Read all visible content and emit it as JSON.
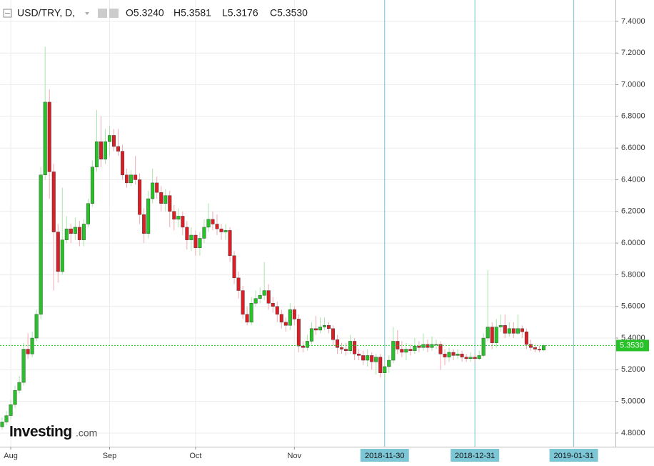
{
  "chart_data": {
    "type": "candlestick",
    "title": "USD/TRY, D,",
    "ohlc_labels": [
      "O5.3240",
      "H5.3581",
      "L5.3176",
      "C5.3530"
    ],
    "watermark": [
      "Investing",
      ".com"
    ],
    "up_color": "#27c227",
    "down_color": "#d81f26",
    "up_wick": "#a8e4a8",
    "down_wick": "#f2a8b0",
    "grid": true,
    "open": [
      4.84,
      4.87,
      4.91,
      4.98,
      5.07,
      5.12,
      5.33,
      5.3,
      5.4,
      5.55,
      6.43,
      6.89,
      6.45,
      6.07,
      5.82,
      6.02,
      6.09,
      6.06,
      6.1,
      6.02,
      6.12,
      6.25,
      6.48,
      6.64,
      6.53,
      6.64,
      6.68,
      6.61,
      6.58,
      6.43,
      6.38,
      6.43,
      6.4,
      6.18,
      6.06,
      6.28,
      6.38,
      6.32,
      6.25,
      6.3,
      6.2,
      6.15,
      6.17,
      6.1,
      6.02,
      6.05,
      5.97,
      6.03,
      6.1,
      6.15,
      6.12,
      6.09,
      6.07,
      6.08,
      5.92,
      5.78,
      5.7,
      5.55,
      5.5,
      5.62,
      5.65,
      5.67,
      5.7,
      5.62,
      5.6,
      5.55,
      5.5,
      5.48,
      5.58,
      5.52,
      5.35,
      5.34,
      5.38,
      5.46,
      5.45,
      5.47,
      5.48,
      5.46,
      5.39,
      5.34,
      5.33,
      5.32,
      5.38,
      5.3,
      5.29,
      5.26,
      5.29,
      5.25,
      5.28,
      5.18,
      5.22,
      5.26,
      5.38,
      5.33,
      5.31,
      5.33,
      5.32,
      5.35,
      5.34,
      5.36,
      5.34,
      5.36,
      5.36,
      5.3,
      5.28,
      5.31,
      5.29,
      5.3,
      5.28,
      5.27,
      5.28,
      5.27,
      5.29,
      5.4,
      5.47,
      5.37,
      5.47,
      5.48,
      5.43,
      5.46,
      5.43,
      5.46,
      5.44,
      5.36,
      5.34,
      5.33,
      5.324
    ],
    "high": [
      4.9,
      4.94,
      5.01,
      5.1,
      5.16,
      5.37,
      5.43,
      5.44,
      5.58,
      6.48,
      7.24,
      6.97,
      6.5,
      6.12,
      6.35,
      6.17,
      6.12,
      6.16,
      6.14,
      6.15,
      6.28,
      6.52,
      6.84,
      6.8,
      6.72,
      6.74,
      6.72,
      6.72,
      6.62,
      6.47,
      6.46,
      6.55,
      6.44,
      6.22,
      6.33,
      6.47,
      6.42,
      6.36,
      6.34,
      6.33,
      6.24,
      6.22,
      6.2,
      6.14,
      6.1,
      6.08,
      6.07,
      6.15,
      6.25,
      6.2,
      6.18,
      6.12,
      6.12,
      6.1,
      5.95,
      5.82,
      5.73,
      5.6,
      5.66,
      5.7,
      5.72,
      5.88,
      5.74,
      5.66,
      5.63,
      5.58,
      5.53,
      5.62,
      5.6,
      5.55,
      5.38,
      5.42,
      5.5,
      5.54,
      5.53,
      5.53,
      5.5,
      5.48,
      5.42,
      5.37,
      5.37,
      5.42,
      5.4,
      5.33,
      5.32,
      5.33,
      5.31,
      5.3,
      5.3,
      5.25,
      5.29,
      5.47,
      5.45,
      5.38,
      5.37,
      5.36,
      5.4,
      5.38,
      5.43,
      5.39,
      5.41,
      5.39,
      5.38,
      5.33,
      5.34,
      5.33,
      5.33,
      5.32,
      5.3,
      5.31,
      5.3,
      5.32,
      5.43,
      5.83,
      5.5,
      5.52,
      5.55,
      5.55,
      5.5,
      5.5,
      5.55,
      5.48,
      5.46,
      5.39,
      5.36,
      5.35,
      5.3581
    ],
    "low": [
      4.82,
      4.85,
      4.89,
      4.96,
      5.05,
      5.1,
      5.27,
      5.28,
      5.38,
      5.52,
      6.4,
      6.28,
      5.7,
      5.75,
      5.8,
      6.0,
      6.0,
      6.02,
      5.98,
      5.98,
      6.1,
      6.23,
      6.45,
      6.48,
      6.5,
      6.55,
      6.58,
      6.55,
      6.4,
      6.35,
      6.36,
      6.37,
      6.12,
      6.0,
      6.03,
      6.25,
      6.28,
      6.2,
      6.2,
      6.1,
      6.08,
      6.1,
      6.05,
      5.96,
      5.95,
      5.92,
      5.92,
      6.0,
      6.07,
      6.08,
      6.05,
      6.02,
      6.02,
      5.88,
      5.74,
      5.65,
      5.52,
      5.48,
      5.48,
      5.6,
      5.62,
      5.64,
      5.58,
      5.56,
      5.5,
      5.46,
      5.44,
      5.45,
      5.48,
      5.31,
      5.31,
      5.32,
      5.36,
      5.42,
      5.43,
      5.45,
      5.43,
      5.35,
      5.3,
      5.3,
      5.29,
      5.3,
      5.26,
      5.26,
      5.23,
      5.22,
      5.2,
      5.17,
      5.15,
      5.14,
      5.18,
      5.24,
      5.3,
      5.28,
      5.26,
      5.29,
      5.3,
      5.31,
      5.32,
      5.31,
      5.32,
      5.33,
      5.2,
      5.23,
      5.25,
      5.26,
      5.27,
      5.25,
      5.25,
      5.25,
      5.25,
      5.26,
      5.28,
      5.38,
      5.33,
      5.34,
      5.44,
      5.4,
      5.41,
      5.4,
      5.42,
      5.4,
      5.33,
      5.32,
      5.31,
      5.31,
      5.3176
    ],
    "close": [
      4.87,
      4.91,
      4.98,
      5.07,
      5.12,
      5.33,
      5.3,
      5.4,
      5.55,
      6.43,
      6.89,
      6.45,
      6.07,
      5.82,
      6.02,
      6.09,
      6.06,
      6.1,
      6.02,
      6.12,
      6.25,
      6.48,
      6.64,
      6.53,
      6.64,
      6.68,
      6.61,
      6.58,
      6.43,
      6.38,
      6.43,
      6.4,
      6.18,
      6.06,
      6.28,
      6.38,
      6.32,
      6.25,
      6.3,
      6.2,
      6.15,
      6.17,
      6.1,
      6.02,
      6.05,
      5.97,
      6.03,
      6.1,
      6.15,
      6.12,
      6.09,
      6.07,
      6.08,
      5.92,
      5.78,
      5.7,
      5.55,
      5.5,
      5.62,
      5.65,
      5.67,
      5.7,
      5.62,
      5.6,
      5.55,
      5.5,
      5.48,
      5.58,
      5.52,
      5.35,
      5.34,
      5.38,
      5.46,
      5.45,
      5.47,
      5.48,
      5.46,
      5.39,
      5.34,
      5.33,
      5.32,
      5.38,
      5.3,
      5.29,
      5.26,
      5.29,
      5.25,
      5.28,
      5.18,
      5.22,
      5.26,
      5.38,
      5.33,
      5.31,
      5.33,
      5.32,
      5.35,
      5.34,
      5.36,
      5.34,
      5.36,
      5.36,
      5.3,
      5.28,
      5.31,
      5.29,
      5.3,
      5.28,
      5.27,
      5.28,
      5.27,
      5.29,
      5.4,
      5.47,
      5.37,
      5.47,
      5.48,
      5.43,
      5.46,
      5.43,
      5.46,
      5.44,
      5.36,
      5.34,
      5.33,
      5.324,
      5.353
    ],
    "last_price": {
      "value": 5.353,
      "label": "5.3530"
    },
    "xlim": [
      -0.5,
      142.7
    ],
    "ylim": [
      4.714,
      7.535
    ],
    "xticks": [
      {
        "value": 2,
        "label": "Aug"
      },
      {
        "value": 25,
        "label": "Sep"
      },
      {
        "value": 45,
        "label": "Oct"
      },
      {
        "value": 68,
        "label": "Nov"
      }
    ],
    "highlight_xticks": [
      {
        "value": 89,
        "label": "2018-11-30"
      },
      {
        "value": 110,
        "label": "2018-12-31"
      },
      {
        "value": 133,
        "label": "2019-01-31"
      }
    ],
    "yticks": [
      {
        "value": 4.8,
        "label": "4.8000"
      },
      {
        "value": 5.0,
        "label": "5.0000"
      },
      {
        "value": 5.2,
        "label": "5.2000"
      },
      {
        "value": 5.4,
        "label": "5.4000"
      },
      {
        "value": 5.6,
        "label": "5.6000"
      },
      {
        "value": 5.8,
        "label": "5.8000"
      },
      {
        "value": 6.0,
        "label": "6.0000"
      },
      {
        "value": 6.2,
        "label": "6.2000"
      },
      {
        "value": 6.4,
        "label": "6.4000"
      },
      {
        "value": 6.6,
        "label": "6.6000"
      },
      {
        "value": 6.8,
        "label": "6.8000"
      },
      {
        "value": 7.0,
        "label": "7.0000"
      },
      {
        "value": 7.2,
        "label": "7.2000"
      },
      {
        "value": 7.4,
        "label": "7.4000"
      }
    ]
  }
}
